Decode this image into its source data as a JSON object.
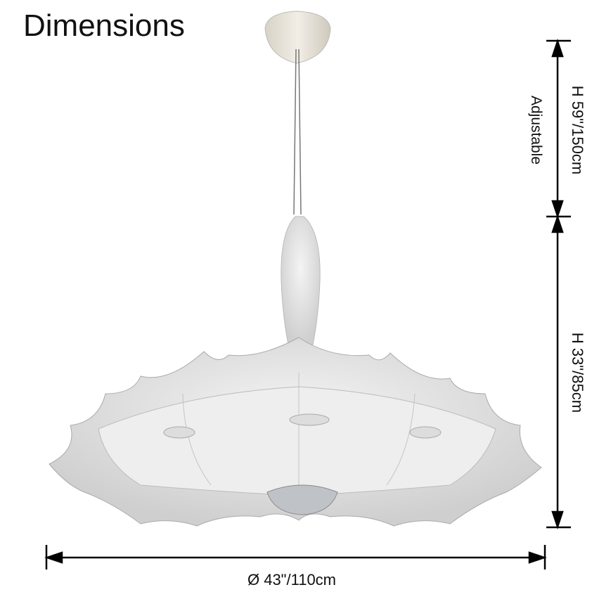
{
  "title": "Dimensions",
  "dimensions": {
    "hanging_height": "H 59\"/150cm",
    "hanging_note": "Adjustable",
    "lamp_height": "H 33\"/85cm",
    "diameter": "Ø 43\"/110cm"
  },
  "colors": {
    "line": "#000000",
    "shade": "#e8e8e8",
    "canopy": "#e6e1d6"
  }
}
